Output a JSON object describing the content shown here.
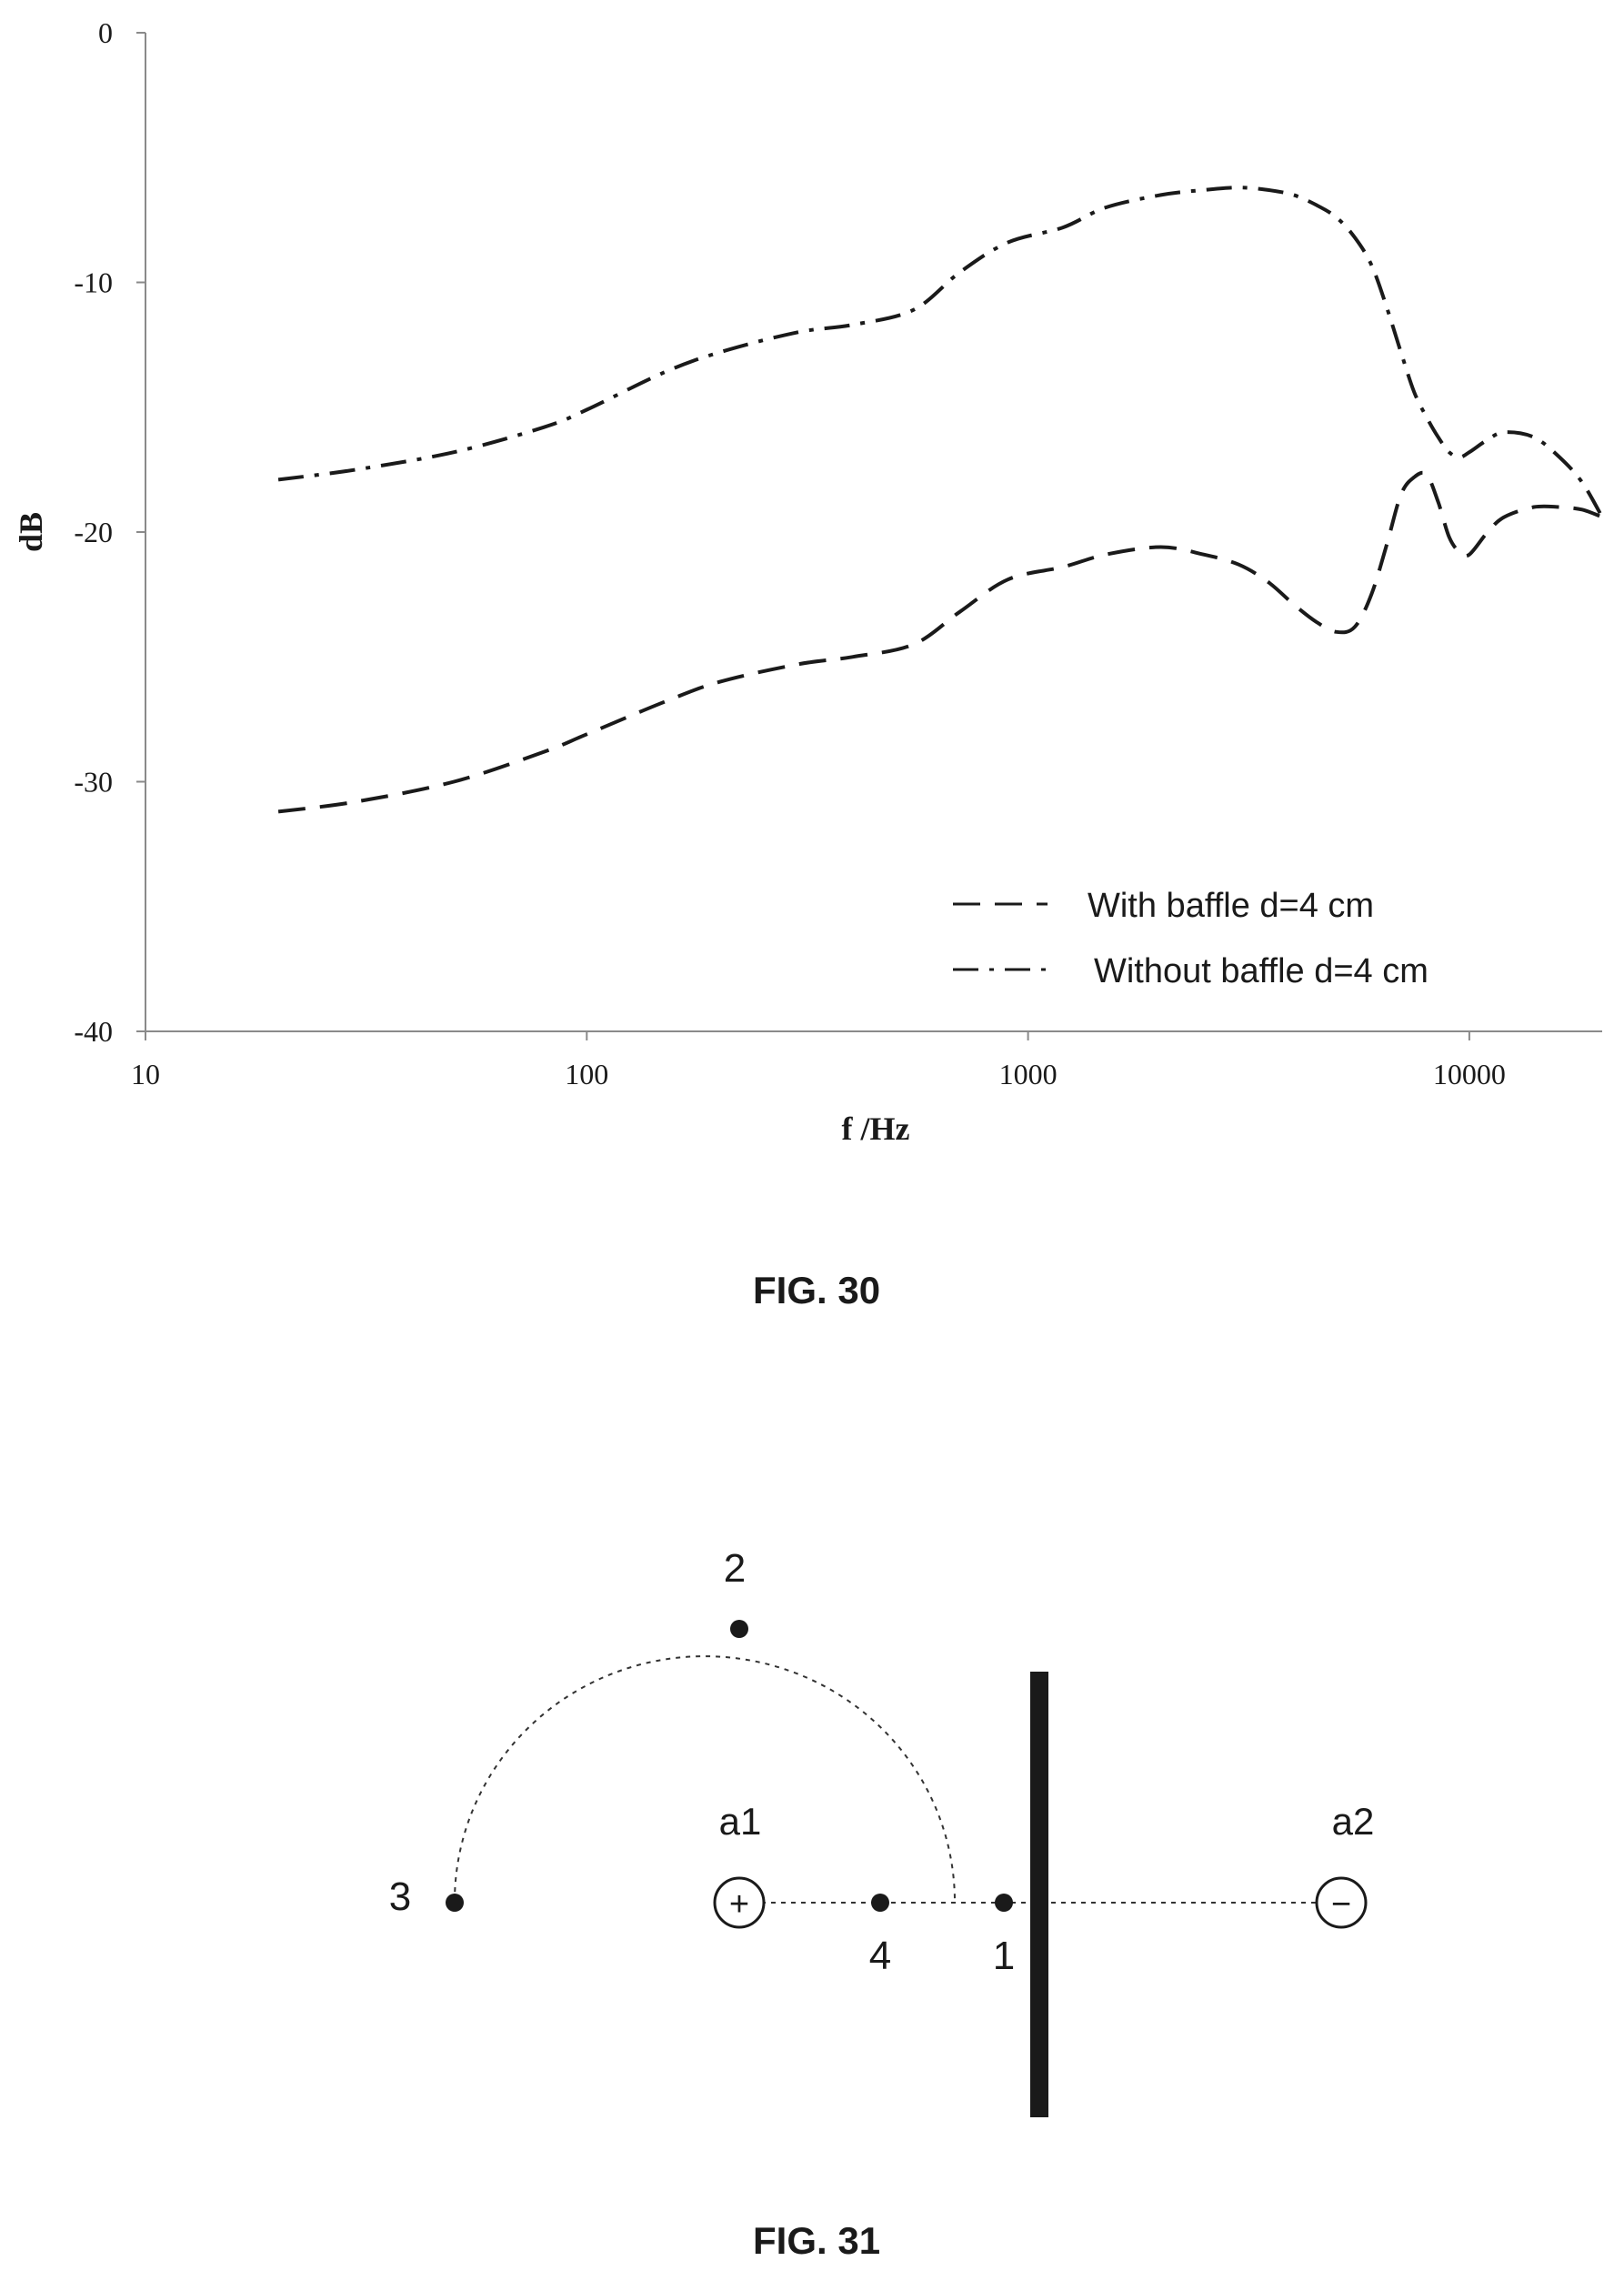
{
  "figures": [
    {
      "label": "FIG. 30"
    },
    {
      "label": "FIG. 31"
    }
  ],
  "chart_data": {
    "type": "line",
    "title": "",
    "xlabel": "f /Hz",
    "ylabel": "dB",
    "xscale": "log",
    "xlim": [
      10,
      20000
    ],
    "ylim": [
      -40,
      0
    ],
    "xticks": [
      10,
      100,
      1000,
      10000
    ],
    "xtick_labels": [
      "10",
      "100",
      "1000",
      "10000"
    ],
    "yticks": [
      0,
      -10,
      -20,
      -30,
      -40
    ],
    "ytick_labels": [
      "0",
      "-10",
      "-20",
      "-30",
      "-40"
    ],
    "grid": false,
    "legend_position": "bottom-right",
    "series": [
      {
        "name": "With baffle d=4 cm",
        "style": "dashed",
        "color": "#1a1a1a",
        "x": [
          20,
          30,
          50,
          80,
          100,
          150,
          200,
          300,
          400,
          550,
          700,
          900,
          1200,
          1500,
          2000,
          2500,
          3000,
          3500,
          4000,
          4500,
          5000,
          5500,
          6000,
          6500,
          7000,
          7500,
          8000,
          8500,
          9000,
          9500,
          10000,
          11000,
          12000,
          14000,
          16000,
          18000,
          20000
        ],
        "y": [
          -31.2,
          -30.8,
          -30.0,
          -28.8,
          -28.1,
          -26.8,
          -26.0,
          -25.3,
          -25.0,
          -24.5,
          -23.2,
          -21.9,
          -21.4,
          -20.9,
          -20.6,
          -20.9,
          -21.3,
          -22.0,
          -22.9,
          -23.6,
          -24.0,
          -23.8,
          -22.5,
          -20.5,
          -18.5,
          -17.8,
          -17.7,
          -18.8,
          -20.2,
          -20.8,
          -20.9,
          -20.0,
          -19.4,
          -19.0,
          -19.0,
          -19.1,
          -19.4
        ]
      },
      {
        "name": "Without baffle d=4 cm",
        "style": "dash-dot",
        "color": "#1a1a1a",
        "x": [
          20,
          30,
          50,
          80,
          100,
          150,
          200,
          300,
          400,
          550,
          700,
          900,
          1200,
          1500,
          2000,
          2500,
          3000,
          3500,
          4000,
          4500,
          5000,
          5500,
          6000,
          6500,
          7000,
          7500,
          8000,
          8500,
          9000,
          9500,
          10000,
          11000,
          12000,
          14000,
          16000,
          18000,
          20000
        ],
        "y": [
          -17.9,
          -17.5,
          -16.8,
          -15.8,
          -15.1,
          -13.6,
          -12.8,
          -12.0,
          -11.7,
          -11.1,
          -9.6,
          -8.4,
          -7.8,
          -7.0,
          -6.5,
          -6.3,
          -6.2,
          -6.3,
          -6.5,
          -6.9,
          -7.4,
          -8.2,
          -9.3,
          -11.0,
          -12.8,
          -14.4,
          -15.4,
          -16.2,
          -16.8,
          -17.0,
          -16.8,
          -16.3,
          -16.0,
          -16.2,
          -17.0,
          -18.0,
          -19.4
        ]
      }
    ]
  },
  "diagram": {
    "points": [
      {
        "label": "1"
      },
      {
        "label": "2"
      },
      {
        "label": "3"
      },
      {
        "label": "4"
      }
    ],
    "sources": [
      {
        "label": "a1",
        "sign": "+"
      },
      {
        "label": "a2",
        "sign": "−"
      }
    ]
  }
}
